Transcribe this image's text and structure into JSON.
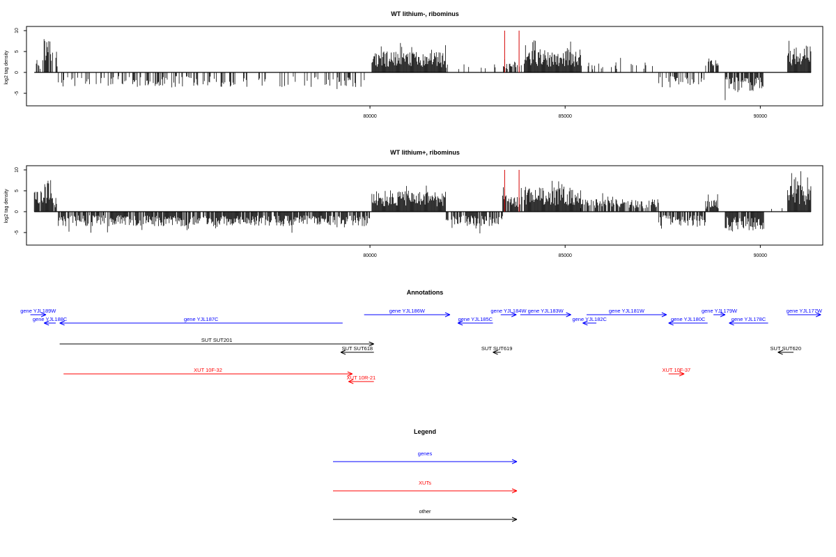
{
  "colors": {
    "genes": "#0000ff",
    "xuts": "#ff0000",
    "other": "#000000",
    "axis": "#000000",
    "marker": "#d40000"
  },
  "chart_data": [
    {
      "type": "bar",
      "title": "WT lithium-, ribominus",
      "ylabel": "log2 tag density",
      "xlim": [
        71200,
        91600
      ],
      "ylim": [
        -8,
        11
      ],
      "xticks": [
        80000,
        85000,
        90000
      ],
      "yticks": [
        -5,
        0,
        5,
        10
      ],
      "markers": [
        83450,
        83820
      ],
      "x_start": 71400,
      "x_end": 91300,
      "bin_width": 17,
      "regions": [
        {
          "from": 71400,
          "to": 71650,
          "sign": 1,
          "amp": 3.0,
          "density": 0.4
        },
        {
          "from": 71650,
          "to": 71850,
          "sign": 1,
          "amp": 9.0,
          "density": 0.9
        },
        {
          "from": 71850,
          "to": 72000,
          "sign": 1,
          "amp": 5.0,
          "density": 0.6
        },
        {
          "from": 72000,
          "to": 79900,
          "sign": -1,
          "amp": 3.5,
          "density": 0.35
        },
        {
          "from": 80050,
          "to": 81950,
          "sign": 1,
          "amp": 5.0,
          "density": 1.0
        },
        {
          "from": 81950,
          "to": 83400,
          "sign": 1,
          "amp": 2.2,
          "density": 0.12
        },
        {
          "from": 83400,
          "to": 83900,
          "sign": 1,
          "amp": 3.2,
          "density": 0.7
        },
        {
          "from": 83950,
          "to": 85400,
          "sign": 1,
          "amp": 5.5,
          "density": 1.0
        },
        {
          "from": 85400,
          "to": 87400,
          "sign": 1,
          "amp": 2.5,
          "density": 0.18
        },
        {
          "from": 87400,
          "to": 88600,
          "sign": -1,
          "amp": 3.0,
          "density": 0.35
        },
        {
          "from": 88600,
          "to": 88950,
          "sign": 1,
          "amp": 3.5,
          "density": 0.7
        },
        {
          "from": 89100,
          "to": 90100,
          "sign": -1,
          "amp": 4.5,
          "density": 0.9
        },
        {
          "from": 90100,
          "to": 90700,
          "sign": 1,
          "amp": 1.0,
          "density": 0.06
        },
        {
          "from": 90700,
          "to": 91300,
          "sign": 1,
          "amp": 6.5,
          "density": 1.0
        }
      ]
    },
    {
      "type": "bar",
      "title": "WT lithium+, ribominus",
      "ylabel": "log2 tag density",
      "xlim": [
        71200,
        91600
      ],
      "ylim": [
        -8,
        11
      ],
      "xticks": [
        80000,
        85000,
        90000
      ],
      "yticks": [
        -5,
        0,
        5,
        10
      ],
      "markers": [
        83450,
        83820
      ],
      "x_start": 71400,
      "x_end": 91300,
      "bin_width": 17,
      "regions": [
        {
          "from": 71400,
          "to": 71650,
          "sign": 1,
          "amp": 5.0,
          "density": 0.9
        },
        {
          "from": 71650,
          "to": 71850,
          "sign": 1,
          "amp": 8.0,
          "density": 1.0
        },
        {
          "from": 71850,
          "to": 72000,
          "sign": 1,
          "amp": 4.0,
          "density": 0.9
        },
        {
          "from": 72000,
          "to": 80000,
          "sign": -1,
          "amp": 3.5,
          "density": 0.85
        },
        {
          "from": 80050,
          "to": 81950,
          "sign": 1,
          "amp": 5.0,
          "density": 1.0
        },
        {
          "from": 81950,
          "to": 83400,
          "sign": -1,
          "amp": 3.5,
          "density": 0.8
        },
        {
          "from": 83400,
          "to": 83900,
          "sign": 1,
          "amp": 4.0,
          "density": 0.9
        },
        {
          "from": 83950,
          "to": 85400,
          "sign": 1,
          "amp": 6.0,
          "density": 1.0
        },
        {
          "from": 85400,
          "to": 87400,
          "sign": 1,
          "amp": 3.0,
          "density": 0.75
        },
        {
          "from": 87400,
          "to": 88600,
          "sign": -1,
          "amp": 3.5,
          "density": 0.8
        },
        {
          "from": 88600,
          "to": 88950,
          "sign": 1,
          "amp": 3.0,
          "density": 0.8
        },
        {
          "from": 89100,
          "to": 90100,
          "sign": -1,
          "amp": 4.5,
          "density": 0.9
        },
        {
          "from": 90100,
          "to": 90700,
          "sign": 1,
          "amp": 1.0,
          "density": 0.1
        },
        {
          "from": 90700,
          "to": 91300,
          "sign": 1,
          "amp": 6.5,
          "density": 1.0
        }
      ]
    }
  ],
  "annotations": {
    "title": "Annotations",
    "xlim": [
      71200,
      91600
    ],
    "features": [
      {
        "label": "gene YJL189W",
        "class": "genes",
        "start": 71300,
        "end": 71700,
        "strand": "+",
        "row": 0
      },
      {
        "label": "gene YJL188C",
        "class": "genes",
        "start": 71650,
        "end": 71950,
        "strand": "-",
        "row": 1
      },
      {
        "label": "gene YJL187C",
        "class": "genes",
        "start": 72050,
        "end": 79300,
        "strand": "-",
        "row": 1
      },
      {
        "label": "gene YJL186W",
        "class": "genes",
        "start": 79850,
        "end": 82050,
        "strand": "+",
        "row": 0
      },
      {
        "label": "gene YJL185C",
        "class": "genes",
        "start": 82250,
        "end": 83150,
        "strand": "-",
        "row": 1
      },
      {
        "label": "gene YJL184W",
        "class": "genes",
        "start": 83350,
        "end": 83750,
        "strand": "+",
        "row": 0
      },
      {
        "label": "gene YJL183W",
        "class": "genes",
        "start": 83850,
        "end": 85150,
        "strand": "+",
        "row": 0
      },
      {
        "label": "gene YJL182C",
        "class": "genes",
        "start": 85450,
        "end": 85800,
        "strand": "-",
        "row": 1
      },
      {
        "label": "gene YJL181W",
        "class": "genes",
        "start": 85550,
        "end": 87600,
        "strand": "+",
        "row": 0
      },
      {
        "label": "gene YJL180C",
        "class": "genes",
        "start": 87650,
        "end": 88650,
        "strand": "-",
        "row": 1
      },
      {
        "label": "gene YJL179W",
        "class": "genes",
        "start": 88800,
        "end": 89100,
        "strand": "+",
        "row": 0
      },
      {
        "label": "gene YJL178C",
        "class": "genes",
        "start": 89200,
        "end": 90200,
        "strand": "-",
        "row": 1
      },
      {
        "label": "gene YJL177W",
        "class": "genes",
        "start": 90700,
        "end": 91550,
        "strand": "+",
        "row": 0
      },
      {
        "label": "SUT SUT201",
        "class": "other",
        "start": 72050,
        "end": 80100,
        "strand": "+",
        "row": 2
      },
      {
        "label": "SUT SUT618",
        "class": "other",
        "start": 79250,
        "end": 80100,
        "strand": "-",
        "row": 3
      },
      {
        "label": "SUT SUT619",
        "class": "other",
        "start": 83150,
        "end": 83350,
        "strand": "-",
        "row": 3
      },
      {
        "label": "SUT SUT620",
        "class": "other",
        "start": 90450,
        "end": 90850,
        "strand": "-",
        "row": 3
      },
      {
        "label": "XUT 10F-32",
        "class": "xuts",
        "start": 72150,
        "end": 79550,
        "strand": "+",
        "row": 4
      },
      {
        "label": "XUT 10R-21",
        "class": "xuts",
        "start": 79450,
        "end": 80100,
        "strand": "-",
        "row": 5
      },
      {
        "label": "XUT 10F-37",
        "class": "xuts",
        "start": 87650,
        "end": 88050,
        "strand": "+",
        "row": 4
      }
    ]
  },
  "legend": {
    "title": "Legend",
    "entries": [
      {
        "label": "genes",
        "class": "genes"
      },
      {
        "label": "XUTs",
        "class": "xuts"
      },
      {
        "label": "other",
        "class": "other"
      }
    ]
  }
}
